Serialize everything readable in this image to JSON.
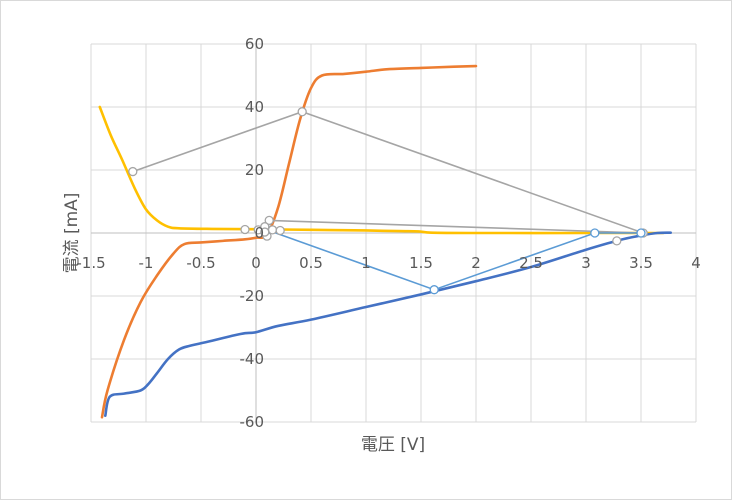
{
  "chart_data": {
    "type": "scatter",
    "title": "",
    "xlabel": "電圧 [V]",
    "ylabel": "電流 [mA]",
    "xlim": [
      -1.5,
      4
    ],
    "ylim": [
      -60,
      60
    ],
    "x_ticks": [
      -1.5,
      -1,
      -0.5,
      0,
      0.5,
      1,
      1.5,
      2,
      2.5,
      3,
      3.5,
      4
    ],
    "x_tick_labels": [
      "-1.5",
      "-1",
      "-0.5",
      "0",
      "0.5",
      "1",
      "1.5",
      "2",
      "2.5",
      "3",
      "3.5",
      "4"
    ],
    "y_ticks": [
      -60,
      -40,
      -20,
      0,
      20,
      40,
      60
    ],
    "y_tick_labels": [
      "-60",
      "-40",
      "-20",
      "0",
      "20",
      "40",
      "60"
    ],
    "grid": true,
    "legend": "none",
    "series": [
      {
        "color": "#ED7D31",
        "style": "smooth-line",
        "points": [
          [
            -1.4,
            -58.5
          ],
          [
            -1.35,
            -50
          ],
          [
            -1.2,
            -34
          ],
          [
            -1.05,
            -22
          ],
          [
            -0.9,
            -13.5
          ],
          [
            -0.75,
            -6.5
          ],
          [
            -0.65,
            -3.5
          ],
          [
            -0.5,
            -3
          ],
          [
            -0.3,
            -2.5
          ],
          [
            -0.1,
            -2
          ],
          [
            0,
            -1.5
          ],
          [
            0.1,
            -0.5
          ],
          [
            0.2,
            8
          ],
          [
            0.3,
            22
          ],
          [
            0.4,
            36
          ],
          [
            0.5,
            46
          ],
          [
            0.6,
            50
          ],
          [
            0.8,
            50.5
          ],
          [
            1.0,
            51.2
          ],
          [
            1.2,
            52
          ],
          [
            1.5,
            52.4
          ],
          [
            1.8,
            52.8
          ],
          [
            2.0,
            53
          ]
        ]
      },
      {
        "color": "#FFC000",
        "style": "smooth-line",
        "points": [
          [
            -1.42,
            40
          ],
          [
            -1.32,
            31
          ],
          [
            -1.22,
            23.5
          ],
          [
            -1.1,
            14
          ],
          [
            -1.0,
            7.5
          ],
          [
            -0.9,
            4
          ],
          [
            -0.8,
            2
          ],
          [
            -0.7,
            1.5
          ],
          [
            -0.4,
            1.3
          ],
          [
            0,
            1.2
          ],
          [
            0.5,
            1.0
          ],
          [
            1.0,
            0.8
          ],
          [
            1.3,
            0.6
          ],
          [
            1.48,
            0.5
          ],
          [
            1.6,
            0.1
          ],
          [
            2.0,
            0
          ],
          [
            3.0,
            0
          ],
          [
            3.7,
            0
          ]
        ]
      },
      {
        "color": "#4472C4",
        "style": "smooth-line",
        "points": [
          [
            -1.37,
            -58
          ],
          [
            -1.33,
            -52
          ],
          [
            -1.2,
            -51
          ],
          [
            -1.05,
            -50
          ],
          [
            -0.98,
            -48
          ],
          [
            -0.9,
            -44.5
          ],
          [
            -0.8,
            -40
          ],
          [
            -0.7,
            -37
          ],
          [
            -0.6,
            -35.8
          ],
          [
            -0.4,
            -34.2
          ],
          [
            -0.2,
            -32.5
          ],
          [
            -0.1,
            -31.8
          ],
          [
            0,
            -31.5
          ],
          [
            0.2,
            -29.5
          ],
          [
            0.5,
            -27.5
          ],
          [
            1.0,
            -23.5
          ],
          [
            1.5,
            -19.5
          ],
          [
            2.0,
            -15.3
          ],
          [
            2.5,
            -10.8
          ],
          [
            3.0,
            -5.3
          ],
          [
            3.3,
            -2.3
          ],
          [
            3.5,
            -0.8
          ],
          [
            3.65,
            0
          ],
          [
            3.77,
            0.1
          ]
        ]
      },
      {
        "color": "#A5A5A5",
        "style": "straight-line-markers",
        "points": [
          [
            -1.12,
            19.5
          ],
          [
            0.42,
            38.5
          ],
          [
            3.52,
            0
          ],
          [
            0.12,
            4
          ],
          [
            0.1,
            -1
          ]
        ]
      },
      {
        "color": "#5B9BD5",
        "style": "straight-line-markers",
        "points": [
          [
            0.1,
            1
          ],
          [
            1.62,
            -18
          ],
          [
            3.08,
            0
          ],
          [
            3.5,
            0
          ]
        ]
      },
      {
        "color": "#A5A5A5",
        "style": "markers",
        "points": [
          [
            -0.1,
            1.1
          ],
          [
            0.02,
            1.0
          ],
          [
            0.08,
            2.0
          ],
          [
            0.15,
            1.0
          ],
          [
            0.22,
            0.8
          ],
          [
            0.08,
            0.3
          ],
          [
            3.28,
            -2.5
          ]
        ]
      }
    ]
  }
}
